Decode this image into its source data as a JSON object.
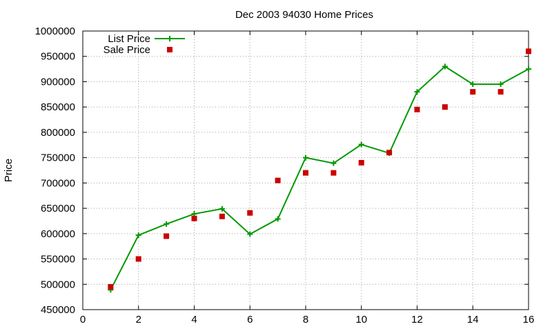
{
  "chart_data": {
    "type": "line",
    "title": "Dec 2003 94030 Home Prices",
    "xlabel": "",
    "ylabel": "Price",
    "xlim": [
      0,
      16
    ],
    "ylim": [
      450000,
      1000000
    ],
    "x_ticks": [
      0,
      2,
      4,
      6,
      8,
      10,
      12,
      14,
      16
    ],
    "y_ticks": [
      450000,
      500000,
      550000,
      600000,
      650000,
      700000,
      750000,
      800000,
      850000,
      900000,
      950000,
      1000000
    ],
    "grid": true,
    "legend_position": "top-left",
    "series": [
      {
        "name": "List Price",
        "style": "lines+crosses",
        "color": "#009900",
        "x": [
          1,
          2,
          3,
          4,
          5,
          6,
          7,
          8,
          9,
          10,
          11,
          12,
          13,
          14,
          15,
          16
        ],
        "y": [
          489000,
          597000,
          619000,
          639000,
          649000,
          599000,
          629000,
          750000,
          739000,
          776000,
          759000,
          880000,
          930000,
          895000,
          895000,
          925000
        ]
      },
      {
        "name": "Sale Price",
        "style": "points",
        "color": "#cc0000",
        "x": [
          1,
          2,
          3,
          4,
          5,
          6,
          7,
          8,
          9,
          10,
          11,
          12,
          13,
          14,
          15,
          16
        ],
        "y": [
          495000,
          550000,
          595000,
          630000,
          634000,
          641000,
          705000,
          720000,
          720000,
          740000,
          760000,
          845000,
          850000,
          880000,
          880000,
          960000
        ]
      }
    ]
  }
}
